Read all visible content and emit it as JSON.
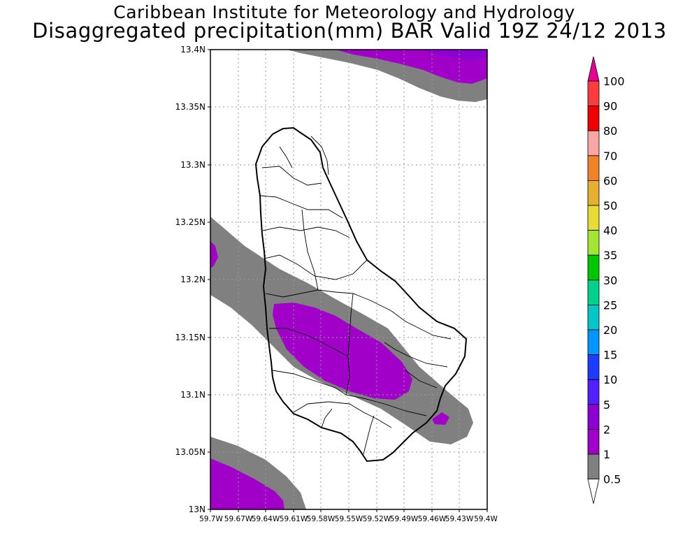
{
  "title": "Caribbean Institute for Meteorology and Hydrology",
  "subtitle": "Disaggregated precipitation(mm) BAR Valid 19Z 24/12 2013",
  "map": {
    "lat_ticks": [
      "13.4N",
      "13.35N",
      "13.3N",
      "13.25N",
      "13.2N",
      "13.15N",
      "13.1N",
      "13.05N",
      "13N"
    ],
    "lon_ticks": [
      "59.7W",
      "59.67W",
      "59.64W",
      "59.61W",
      "59.58W",
      "59.55W",
      "59.52W",
      "59.49W",
      "59.46W",
      "59.43W",
      "59.4W"
    ],
    "lat_range": [
      13.0,
      13.4
    ],
    "lon_range": [
      -59.7,
      -59.4
    ],
    "grid": true
  },
  "colorbar": {
    "labels": [
      "100",
      "90",
      "80",
      "70",
      "60",
      "50",
      "40",
      "35",
      "30",
      "25",
      "20",
      "15",
      "10",
      "5",
      "2",
      "1",
      "0.5"
    ],
    "colors": [
      "#e60096",
      "#fa3c3c",
      "#f00000",
      "#fca5a5",
      "#f08228",
      "#e6af2d",
      "#e6dc32",
      "#a0e632",
      "#00c800",
      "#00d28c",
      "#00c8c8",
      "#0096ff",
      "#1e3cff",
      "#5020ff",
      "#8c00d2",
      "#a000c8",
      "#808080",
      "#ffffff"
    ]
  },
  "legend_ref": {
    "light": "0.5",
    "heavy": "1"
  }
}
